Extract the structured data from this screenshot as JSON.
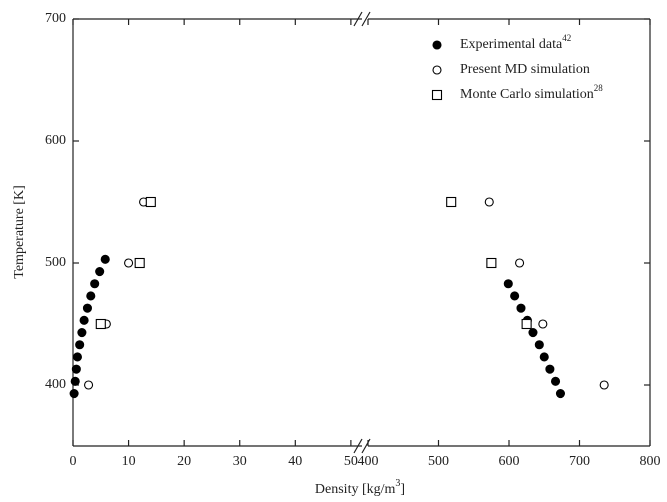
{
  "chart_data": {
    "type": "scatter",
    "y_label": "Temperature [K]",
    "x_label": {
      "text": "Density [kg/m",
      "sup": "3",
      "tail": "]"
    },
    "ylim": [
      350,
      700
    ],
    "yticks": [
      400,
      500,
      600,
      700
    ],
    "panels": [
      {
        "xlim": [
          0,
          52
        ],
        "xticks": [
          0,
          10,
          20,
          30,
          40,
          50
        ]
      },
      {
        "xlim": [
          400,
          800
        ],
        "xticks": [
          400,
          500,
          600,
          700,
          800
        ]
      }
    ],
    "legend": "upper right",
    "series": [
      {
        "name": "Experimental data",
        "sup": "42",
        "marker": "filled-circle",
        "color": "#000000",
        "x": [
          0.2,
          0.4,
          0.6,
          0.8,
          1.2,
          1.6,
          2.0,
          2.6,
          3.2,
          3.9,
          4.8,
          5.8,
          673,
          666,
          658,
          650,
          643,
          634,
          626,
          617,
          608,
          599
        ],
        "values": [
          393,
          403,
          413,
          423,
          433,
          443,
          453,
          463,
          473,
          483,
          493,
          503,
          393,
          403,
          413,
          423,
          433,
          443,
          453,
          463,
          473,
          483
        ]
      },
      {
        "name": "Present MD simulation",
        "marker": "open-circle",
        "color": "#000000",
        "x": [
          2.8,
          6.0,
          10.0,
          12.7,
          735,
          648,
          615,
          572
        ],
        "values": [
          400,
          450,
          500,
          550,
          400,
          450,
          500,
          550
        ]
      },
      {
        "name": "Monte Carlo simulation",
        "sup": "28",
        "marker": "open-square",
        "color": "#000000",
        "x": [
          5.0,
          12.0,
          14.0,
          625,
          575,
          518
        ],
        "values": [
          450,
          500,
          550,
          450,
          500,
          550
        ]
      }
    ]
  }
}
